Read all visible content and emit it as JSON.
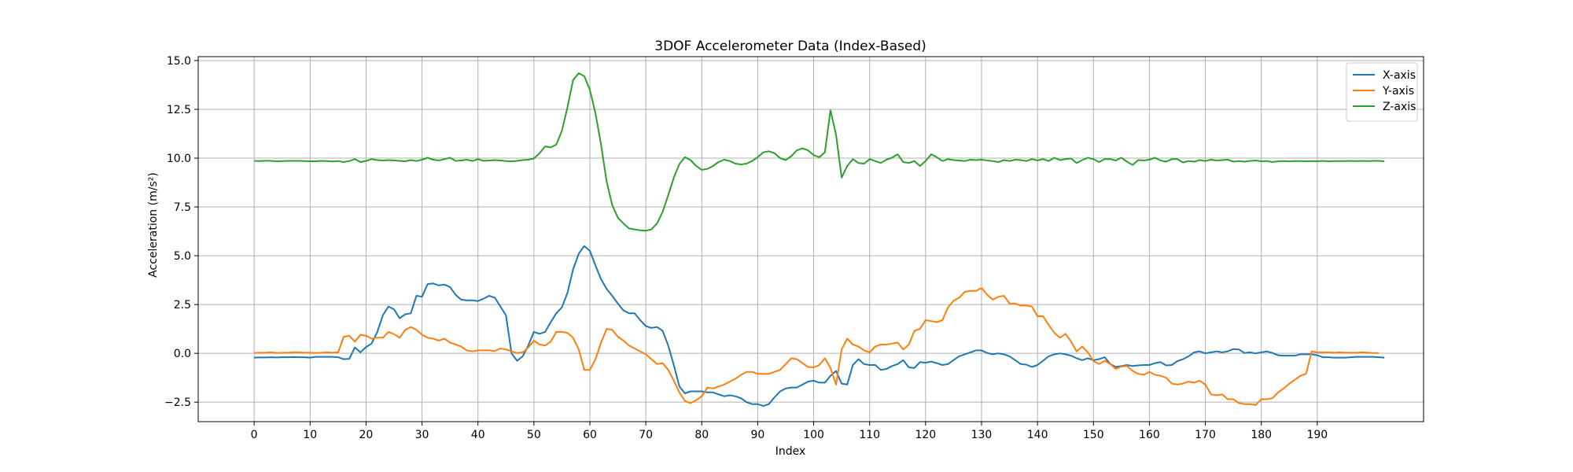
{
  "chart_data": {
    "type": "line",
    "title": "3DOF Accelerometer Data (Index-Based)",
    "xlabel": "Index",
    "ylabel": "Acceleration (m/s²)",
    "xlim": [
      -10,
      209
    ],
    "ylim": [
      -3.5,
      15.2
    ],
    "xticks": [
      0,
      10,
      20,
      30,
      40,
      50,
      60,
      70,
      80,
      90,
      100,
      110,
      120,
      130,
      140,
      150,
      160,
      170,
      180,
      190
    ],
    "yticks": [
      -2.5,
      0.0,
      2.5,
      5.0,
      7.5,
      10.0,
      12.5,
      15.0
    ],
    "ytick_labels": [
      "−2.5",
      "0.0",
      "2.5",
      "5.0",
      "7.5",
      "10.0",
      "12.5",
      "15.0"
    ],
    "grid": true,
    "legend_position": "upper-right",
    "x": {
      "start": 0,
      "step": 1,
      "count": 200
    },
    "series": [
      {
        "name": "X-axis",
        "color": "#1f77b4",
        "values": [
          -0.22,
          -0.21,
          -0.21,
          -0.2,
          -0.21,
          -0.2,
          -0.2,
          -0.19,
          -0.2,
          -0.2,
          -0.22,
          -0.18,
          -0.18,
          -0.18,
          -0.18,
          -0.2,
          -0.3,
          -0.28,
          0.3,
          0.05,
          0.32,
          0.5,
          1.1,
          1.95,
          2.4,
          2.25,
          1.8,
          2.0,
          2.05,
          2.95,
          2.9,
          3.55,
          3.58,
          3.48,
          3.52,
          3.4,
          3.0,
          2.75,
          2.72,
          2.72,
          2.68,
          2.8,
          2.95,
          2.85,
          2.4,
          1.95,
          0.0,
          -0.38,
          -0.15,
          0.4,
          1.1,
          1.0,
          1.1,
          1.6,
          2.05,
          2.35,
          3.1,
          4.3,
          5.1,
          5.5,
          5.25,
          4.5,
          3.8,
          3.3,
          2.95,
          2.55,
          2.2,
          2.05,
          2.05,
          1.7,
          1.4,
          1.3,
          1.35,
          1.15,
          0.4,
          -0.6,
          -1.7,
          -2.05,
          -1.95,
          -1.95,
          -1.95,
          -2.0,
          -2.0,
          -2.1,
          -2.2,
          -2.15,
          -2.2,
          -2.3,
          -2.5,
          -2.6,
          -2.6,
          -2.7,
          -2.6,
          -2.25,
          -1.95,
          -1.8,
          -1.75,
          -1.75,
          -1.6,
          -1.45,
          -1.4,
          -1.5,
          -1.5,
          -1.15,
          -0.9,
          -1.55,
          -1.6,
          -0.6,
          -0.3,
          -0.55,
          -0.6,
          -0.6,
          -0.85,
          -0.8,
          -0.65,
          -0.55,
          -0.35,
          -0.72,
          -0.75,
          -0.45,
          -0.48,
          -0.42,
          -0.5,
          -0.6,
          -0.55,
          -0.35,
          -0.15,
          -0.05,
          0.05,
          0.15,
          0.15,
          0.02,
          -0.05,
          0.0,
          -0.05,
          -0.15,
          -0.35,
          -0.55,
          -0.58,
          -0.7,
          -0.6,
          -0.38,
          -0.15,
          -0.05,
          0.0,
          -0.05,
          -0.12,
          -0.25,
          -0.35,
          -0.25,
          -0.35,
          -0.3,
          -0.2,
          -0.55,
          -0.7,
          -0.65,
          -0.6,
          -0.65,
          -0.62,
          -0.6,
          -0.6,
          -0.5,
          -0.45,
          -0.62,
          -0.6,
          -0.4,
          -0.3,
          -0.15,
          0.05,
          0.1,
          0.0,
          0.05,
          0.1,
          0.05,
          0.1,
          0.22,
          0.2,
          0.02,
          0.05,
          0.0,
          0.05,
          0.1,
          0.02,
          -0.1,
          -0.12,
          -0.12,
          -0.12,
          -0.05,
          -0.05,
          -0.05,
          -0.1,
          -0.2,
          -0.2,
          -0.22,
          -0.22,
          -0.22,
          -0.2,
          -0.18,
          -0.18,
          -0.18,
          -0.18,
          -0.2,
          -0.22
        ]
      },
      {
        "name": "Y-axis",
        "color": "#ff7f0e",
        "values": [
          0.02,
          0.03,
          0.03,
          0.05,
          0.02,
          0.03,
          0.03,
          0.05,
          0.05,
          0.03,
          0.03,
          0.02,
          0.03,
          0.05,
          0.03,
          0.05,
          0.85,
          0.9,
          0.6,
          0.95,
          0.9,
          0.75,
          0.8,
          0.8,
          1.1,
          0.98,
          0.8,
          1.2,
          1.35,
          1.2,
          0.95,
          0.8,
          0.75,
          0.65,
          0.75,
          0.55,
          0.45,
          0.35,
          0.15,
          0.1,
          0.15,
          0.15,
          0.15,
          0.12,
          0.25,
          0.2,
          0.1,
          0.02,
          0.05,
          0.3,
          0.65,
          0.45,
          0.4,
          0.6,
          1.1,
          1.1,
          1.05,
          0.8,
          0.2,
          -0.85,
          -0.85,
          -0.3,
          0.55,
          1.25,
          1.2,
          0.85,
          0.65,
          0.4,
          0.25,
          0.1,
          -0.05,
          -0.3,
          -0.55,
          -0.5,
          -0.85,
          -1.4,
          -2.0,
          -2.45,
          -2.55,
          -2.4,
          -2.2,
          -1.75,
          -1.8,
          -1.7,
          -1.6,
          -1.45,
          -1.3,
          -1.1,
          -0.95,
          -0.95,
          -1.05,
          -1.05,
          -1.05,
          -0.95,
          -0.85,
          -0.55,
          -0.25,
          -0.3,
          -0.5,
          -0.7,
          -0.72,
          -0.6,
          -0.25,
          -0.75,
          -1.6,
          0.2,
          0.75,
          0.45,
          0.35,
          0.15,
          0.05,
          0.35,
          0.45,
          0.45,
          0.5,
          0.55,
          0.2,
          0.45,
          1.15,
          1.25,
          1.7,
          1.65,
          1.6,
          1.7,
          2.35,
          2.7,
          2.85,
          3.15,
          3.2,
          3.2,
          3.35,
          3.0,
          2.75,
          2.9,
          2.95,
          2.55,
          2.55,
          2.45,
          2.45,
          2.4,
          1.9,
          1.9,
          1.45,
          1.05,
          0.8,
          1.0,
          0.6,
          0.1,
          0.35,
          0.05,
          -0.4,
          -0.55,
          -0.38,
          -0.55,
          -0.8,
          -0.68,
          -0.65,
          -0.9,
          -1.05,
          -1.1,
          -0.95,
          -1.1,
          -1.15,
          -1.25,
          -1.55,
          -1.6,
          -1.55,
          -1.45,
          -1.5,
          -1.4,
          -1.6,
          -2.1,
          -2.15,
          -2.1,
          -2.35,
          -2.35,
          -2.55,
          -2.6,
          -2.6,
          -2.65,
          -2.35,
          -2.35,
          -2.3,
          -2.0,
          -1.8,
          -1.55,
          -1.35,
          -1.15,
          -1.05,
          0.1,
          0.05,
          0.05,
          0.05,
          0.03,
          0.05,
          0.03,
          0.03,
          0.03,
          0.05,
          0.03,
          0.02,
          0.02
        ]
      },
      {
        "name": "Z-axis",
        "color": "#2ca02c",
        "values": [
          9.86,
          9.85,
          9.87,
          9.86,
          9.84,
          9.85,
          9.86,
          9.86,
          9.86,
          9.85,
          9.84,
          9.84,
          9.86,
          9.85,
          9.83,
          9.85,
          9.8,
          9.85,
          9.95,
          9.8,
          9.86,
          9.95,
          9.9,
          9.88,
          9.9,
          9.88,
          9.86,
          9.84,
          9.9,
          9.85,
          9.92,
          10.02,
          9.92,
          9.88,
          9.95,
          10.02,
          9.86,
          9.88,
          9.92,
          9.85,
          9.95,
          9.86,
          9.88,
          9.9,
          9.88,
          9.85,
          9.84,
          9.86,
          9.9,
          9.92,
          9.98,
          10.25,
          10.6,
          10.55,
          10.7,
          11.4,
          12.6,
          14.0,
          14.35,
          14.2,
          13.5,
          12.3,
          10.7,
          8.8,
          7.6,
          6.95,
          6.65,
          6.4,
          6.35,
          6.3,
          6.28,
          6.35,
          6.65,
          7.25,
          8.1,
          9.0,
          9.7,
          10.05,
          9.9,
          9.6,
          9.4,
          9.45,
          9.6,
          9.8,
          9.92,
          9.85,
          9.72,
          9.68,
          9.72,
          9.85,
          10.05,
          10.3,
          10.35,
          10.25,
          10.0,
          9.9,
          10.1,
          10.4,
          10.5,
          10.4,
          10.15,
          10.05,
          10.3,
          12.45,
          11.2,
          9.0,
          9.6,
          9.95,
          9.75,
          9.72,
          9.95,
          9.85,
          9.75,
          9.92,
          10.02,
          10.2,
          9.8,
          9.75,
          9.85,
          9.6,
          9.85,
          10.2,
          10.05,
          9.85,
          9.95,
          9.9,
          9.88,
          9.85,
          9.92,
          9.9,
          9.92,
          9.88,
          9.85,
          9.8,
          9.9,
          9.85,
          9.92,
          9.9,
          9.85,
          9.95,
          9.88,
          9.95,
          9.85,
          10.02,
          9.9,
          9.95,
          9.98,
          9.75,
          9.9,
          10.02,
          9.95,
          9.8,
          9.95,
          9.95,
          9.88,
          10.02,
          9.82,
          9.65,
          9.9,
          9.88,
          9.92,
          10.02,
          9.88,
          9.82,
          9.95,
          9.95,
          9.78,
          9.85,
          9.82,
          9.9,
          9.85,
          9.92,
          9.88,
          9.9,
          9.92,
          9.82,
          9.85,
          9.82,
          9.86,
          9.88,
          9.84,
          9.85,
          9.8,
          9.84,
          9.85,
          9.84,
          9.85,
          9.85,
          9.84,
          9.85,
          9.84,
          9.86,
          9.84,
          9.85,
          9.85,
          9.85,
          9.86,
          9.85,
          9.86,
          9.85,
          9.86,
          9.86,
          9.84
        ]
      }
    ]
  }
}
